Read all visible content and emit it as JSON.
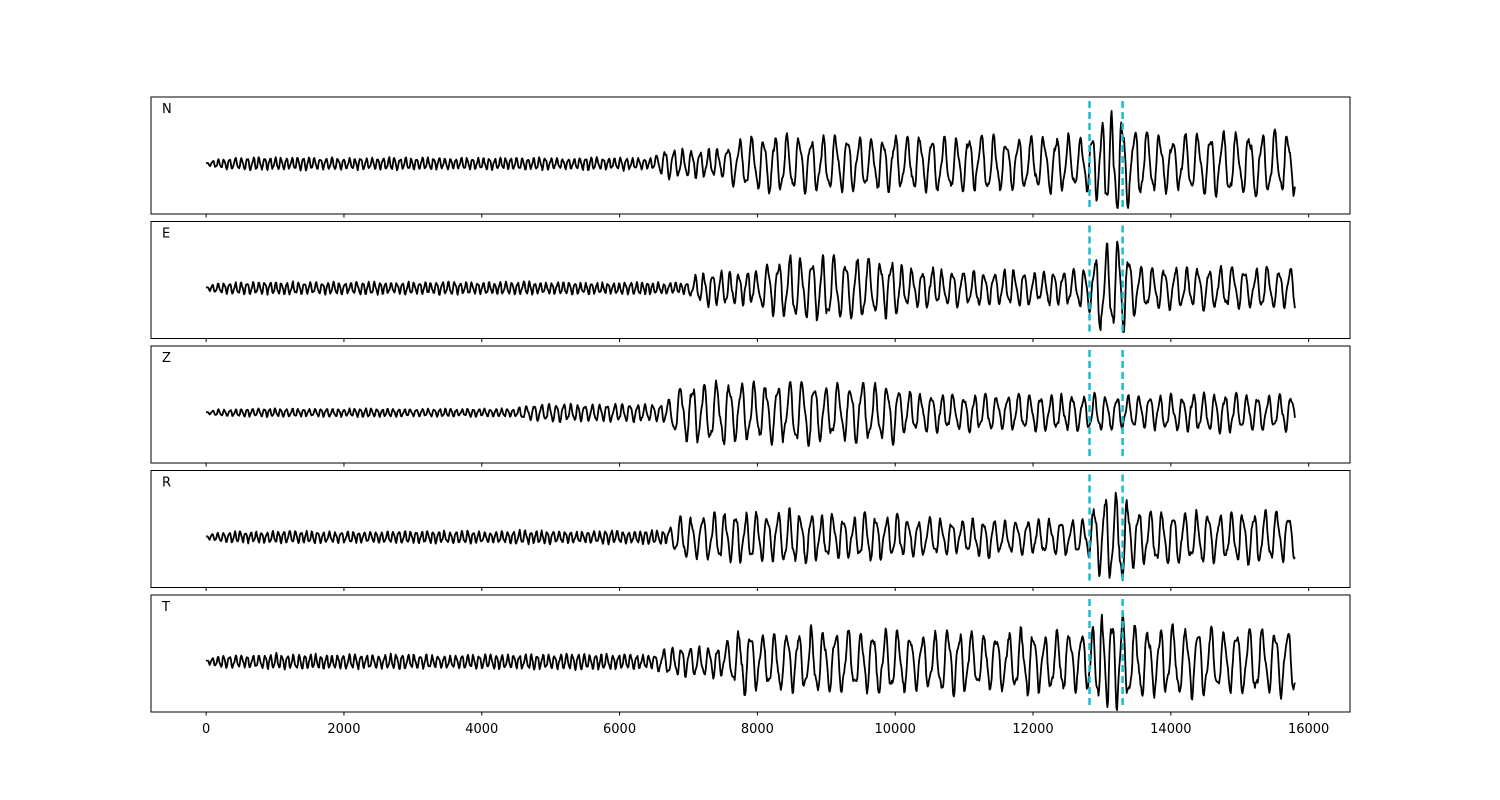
{
  "chart_data": {
    "type": "line",
    "xlim": [
      -800,
      16600
    ],
    "xticks": [
      0,
      2000,
      4000,
      6000,
      8000,
      10000,
      12000,
      14000,
      16000
    ],
    "xtick_labels": [
      "0",
      "2000",
      "4000",
      "6000",
      "8000",
      "10000",
      "12000",
      "14000",
      "16000"
    ],
    "grid": false,
    "line_color": "#000000",
    "marker_color": "#17becf",
    "markers": [
      12820,
      13300
    ],
    "panels": [
      {
        "label": "N",
        "x_end": 15800,
        "segments": [
          {
            "x0": 0,
            "x1": 6500,
            "amp": 0.12,
            "period": 85
          },
          {
            "x0": 6500,
            "x1": 7500,
            "amp": 0.3,
            "period": 130
          },
          {
            "x0": 7500,
            "x1": 12800,
            "amp": 0.55,
            "period": 180
          },
          {
            "x0": 12800,
            "x1": 13300,
            "amp": 0.9,
            "period": 150
          },
          {
            "x0": 13300,
            "x1": 15800,
            "amp": 0.6,
            "period": 190
          }
        ]
      },
      {
        "label": "E",
        "x_end": 15800,
        "segments": [
          {
            "x0": 0,
            "x1": 7000,
            "amp": 0.12,
            "period": 85
          },
          {
            "x0": 7000,
            "x1": 8000,
            "amp": 0.35,
            "period": 130
          },
          {
            "x0": 8000,
            "x1": 10000,
            "amp": 0.6,
            "period": 170
          },
          {
            "x0": 10000,
            "x1": 12800,
            "amp": 0.35,
            "period": 150
          },
          {
            "x0": 12800,
            "x1": 13300,
            "amp": 0.9,
            "period": 170
          },
          {
            "x0": 13300,
            "x1": 15800,
            "amp": 0.4,
            "period": 170
          }
        ]
      },
      {
        "label": "Z",
        "x_end": 15800,
        "segments": [
          {
            "x0": 0,
            "x1": 4500,
            "amp": 0.08,
            "period": 85
          },
          {
            "x0": 4500,
            "x1": 6700,
            "amp": 0.18,
            "period": 110
          },
          {
            "x0": 6700,
            "x1": 10000,
            "amp": 0.6,
            "period": 180
          },
          {
            "x0": 10000,
            "x1": 15800,
            "amp": 0.35,
            "period": 160
          }
        ]
      },
      {
        "label": "R",
        "x_end": 15800,
        "segments": [
          {
            "x0": 0,
            "x1": 6700,
            "amp": 0.12,
            "period": 85
          },
          {
            "x0": 6700,
            "x1": 10000,
            "amp": 0.45,
            "period": 160
          },
          {
            "x0": 10000,
            "x1": 12800,
            "amp": 0.35,
            "period": 160
          },
          {
            "x0": 12800,
            "x1": 13300,
            "amp": 0.9,
            "period": 170
          },
          {
            "x0": 13300,
            "x1": 15800,
            "amp": 0.5,
            "period": 170
          }
        ]
      },
      {
        "label": "T",
        "x_end": 15800,
        "segments": [
          {
            "x0": 0,
            "x1": 6500,
            "amp": 0.14,
            "period": 85
          },
          {
            "x0": 6500,
            "x1": 7500,
            "amp": 0.3,
            "period": 130
          },
          {
            "x0": 7500,
            "x1": 12800,
            "amp": 0.6,
            "period": 180
          },
          {
            "x0": 12800,
            "x1": 13300,
            "amp": 0.9,
            "period": 150
          },
          {
            "x0": 13300,
            "x1": 15800,
            "amp": 0.65,
            "period": 190
          }
        ]
      }
    ]
  }
}
